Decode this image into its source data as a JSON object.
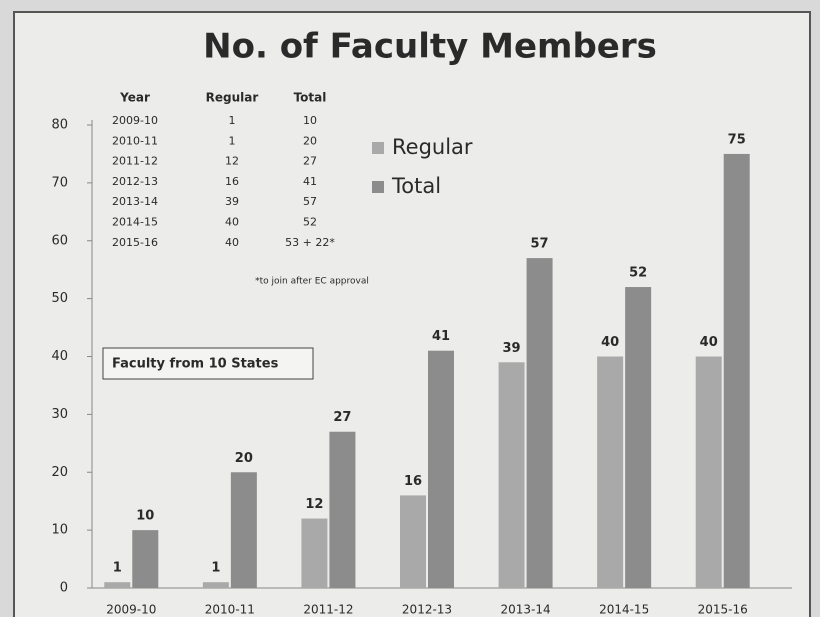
{
  "chart_data": {
    "type": "bar",
    "title": "No. of Faculty Members",
    "categories": [
      "2009-10",
      "2010-11",
      "2011-12",
      "2012-13",
      "2013-14",
      "2014-15",
      "2015-16"
    ],
    "series": [
      {
        "name": "Regular",
        "color": "#a9a9a9",
        "values": [
          1,
          1,
          12,
          16,
          39,
          40,
          40
        ]
      },
      {
        "name": "Total",
        "color": "#8c8c8c",
        "values": [
          10,
          20,
          27,
          41,
          57,
          52,
          75
        ]
      }
    ],
    "ylim": [
      0,
      80
    ],
    "yticks": [
      0,
      10,
      20,
      30,
      40,
      50,
      60,
      70,
      80
    ],
    "legend": "top-center",
    "annotation": "Faculty from 10 States",
    "table": {
      "header": [
        "Year",
        "Regular",
        "Total"
      ],
      "rows": [
        [
          "2009-10",
          "1",
          "10"
        ],
        [
          "2010-11",
          "1",
          "20"
        ],
        [
          "2011-12",
          "12",
          "27"
        ],
        [
          "2012-13",
          "16",
          "41"
        ],
        [
          "2013-14",
          "39",
          "57"
        ],
        [
          "2014-15",
          "40",
          "52"
        ],
        [
          "2015-16",
          "40",
          "53 + 22*"
        ]
      ],
      "note": "*to join after EC approval"
    }
  }
}
